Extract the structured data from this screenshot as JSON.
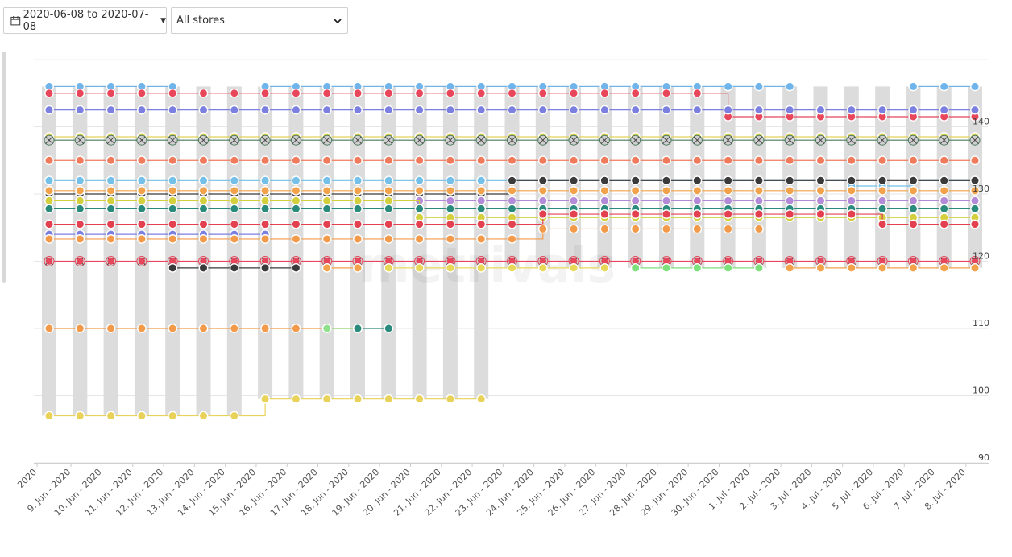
{
  "toolbar": {
    "date_range": "2020-06-08 to 2020-07-08",
    "store_filter": "All stores"
  },
  "watermark": "metrivals",
  "chart_data": {
    "type": "line",
    "title": "",
    "xlabel": "",
    "ylabel": "",
    "ylim": [
      90,
      150
    ],
    "y_ticks": [
      90,
      100,
      110,
      120,
      130,
      140
    ],
    "grid": true,
    "x_tick_labels": [
      "2020",
      "9. Jun - 2020",
      "10. Jun - 2020",
      "11. Jun - 2020",
      "12. Jun - 2020",
      "13. Jun - 2020",
      "14. Jun - 2020",
      "15. Jun - 2020",
      "16. Jun - 2020",
      "17. Jun - 2020",
      "18. Jun - 2020",
      "19. Jun - 2020",
      "20. Jun - 2020",
      "21. Jun - 2020",
      "22. Jun - 2020",
      "23. Jun - 2020",
      "24. Jun - 2020",
      "25. Jun - 2020",
      "26. Jun - 2020",
      "27. Jun - 2020",
      "28. Jun - 2020",
      "29. Jun - 2020",
      "30. Jun - 2020",
      "1. Jul - 2020",
      "2. Jul - 2020",
      "3. Jul - 2020",
      "4. Jul - 2020",
      "5. Jul - 2020",
      "6. Jul - 2020",
      "7. Jul - 2020",
      "8. Jul - 2020"
    ],
    "range_bars": [
      [
        97,
        146
      ],
      [
        97,
        146
      ],
      [
        97,
        146
      ],
      [
        97,
        146
      ],
      [
        97,
        146
      ],
      [
        97,
        146
      ],
      [
        97,
        146
      ],
      [
        99.5,
        146
      ],
      [
        99.5,
        146
      ],
      [
        99.5,
        146
      ],
      [
        99.5,
        146
      ],
      [
        99.5,
        146
      ],
      [
        99.5,
        146
      ],
      [
        99.5,
        146
      ],
      [
        99.5,
        146
      ],
      [
        119,
        146
      ],
      [
        119,
        146
      ],
      [
        119,
        146
      ],
      [
        119,
        146
      ],
      [
        119,
        146
      ],
      [
        119,
        146
      ],
      [
        119,
        146
      ],
      [
        119,
        146
      ],
      [
        119,
        146
      ],
      [
        119,
        146
      ],
      [
        119,
        146
      ],
      [
        119,
        146
      ],
      [
        119,
        146
      ],
      [
        119,
        146
      ],
      [
        119,
        146
      ],
      [
        119,
        146
      ]
    ],
    "series": [
      {
        "color": "#6fb4ea",
        "values": [
          146,
          146,
          146,
          146,
          146,
          null,
          null,
          146,
          146,
          146,
          146,
          146,
          146,
          146,
          146,
          146,
          146,
          146,
          146,
          146,
          146,
          146,
          146,
          146,
          146,
          null,
          null,
          null,
          146,
          146,
          146
        ]
      },
      {
        "color": "#e8465a",
        "values": [
          145,
          145,
          145,
          145,
          145,
          145,
          145,
          145,
          145,
          145,
          145,
          145,
          145,
          145,
          145,
          145,
          145,
          145,
          145,
          145,
          145,
          145,
          141.5,
          141.5,
          141.5,
          141.5,
          141.5,
          141.5,
          141.5,
          141.5,
          141.5
        ]
      },
      {
        "color": "#7b7fe0",
        "values": [
          142.5,
          142.5,
          142.5,
          142.5,
          142.5,
          142.5,
          142.5,
          142.5,
          142.5,
          142.5,
          142.5,
          142.5,
          142.5,
          142.5,
          142.5,
          142.5,
          142.5,
          142.5,
          142.5,
          142.5,
          142.5,
          142.5,
          142.5,
          142.5,
          142.5,
          142.5,
          142.5,
          142.5,
          142.5,
          142.5,
          142.5
        ]
      },
      {
        "color": "#e0d255",
        "values": [
          138.5,
          138.5,
          138.5,
          138.5,
          138.5,
          138.5,
          138.5,
          138.5,
          138.5,
          138.5,
          138.5,
          138.5,
          138.5,
          138.5,
          138.5,
          138.5,
          138.5,
          138.5,
          138.5,
          138.5,
          138.5,
          138.5,
          138.5,
          138.5,
          138.5,
          138.5,
          138.5,
          138.5,
          138.5,
          138.5,
          138.5
        ]
      },
      {
        "color": "#4a7a5c",
        "marker": "crossed",
        "values": [
          138,
          138,
          138,
          138,
          138,
          138,
          138,
          138,
          138,
          138,
          138,
          138,
          138,
          138,
          138,
          138,
          138,
          138,
          138,
          138,
          138,
          138,
          138,
          138,
          138,
          138,
          138,
          138,
          138,
          138,
          138
        ]
      },
      {
        "color": "#f07a5c",
        "values": [
          135,
          135,
          135,
          135,
          135,
          135,
          135,
          135,
          135,
          135,
          135,
          135,
          135,
          135,
          135,
          135,
          135,
          135,
          135,
          135,
          135,
          135,
          135,
          135,
          135,
          135,
          135,
          135,
          135,
          135,
          135
        ]
      },
      {
        "color": "#74c0e8",
        "values": [
          132,
          132,
          132,
          132,
          132,
          132,
          132,
          132,
          132,
          132,
          132,
          132,
          132,
          132,
          132,
          132,
          132,
          132,
          132,
          132,
          132,
          132,
          132,
          132,
          132,
          132,
          131.2,
          131.2,
          132,
          132,
          132
        ]
      },
      {
        "color": "#3a3a3a",
        "values": [
          130,
          130,
          130,
          130,
          130,
          130,
          130,
          130,
          130,
          130,
          130,
          130,
          130,
          130,
          130,
          132,
          132,
          132,
          132,
          132,
          132,
          132,
          132,
          132,
          132,
          132,
          132,
          132,
          132,
          132,
          132
        ]
      },
      {
        "color": "#f2a24a",
        "values": [
          130.5,
          130.5,
          130.5,
          130.5,
          130.5,
          130.5,
          130.5,
          130.5,
          130.5,
          130.5,
          130.5,
          130.5,
          130.5,
          130.5,
          130.5,
          130.5,
          130.5,
          130.5,
          130.5,
          130.5,
          130.5,
          130.5,
          130.5,
          130.5,
          130.5,
          130.5,
          130.5,
          130.5,
          130.5,
          130.5,
          130.5
        ]
      },
      {
        "color": "#b28ad8",
        "values": [
          null,
          null,
          null,
          null,
          null,
          null,
          null,
          null,
          129,
          129,
          129,
          129,
          129,
          129,
          129,
          129,
          129,
          129,
          129,
          129,
          129,
          129,
          129,
          129,
          129,
          129,
          129,
          129,
          129,
          129,
          129
        ]
      },
      {
        "color": "#d4cf3e",
        "values": [
          129,
          129,
          129,
          129,
          129,
          129,
          129,
          129,
          129,
          129,
          129,
          129,
          126.5,
          126.5,
          126.5,
          126.5,
          126.5,
          126.5,
          126.5,
          126.5,
          126.5,
          126.5,
          126.5,
          126.5,
          126.5,
          126.5,
          126.5,
          126.5,
          126.5,
          126.5,
          126.5
        ]
      },
      {
        "color": "#2a8a7c",
        "values": [
          127.8,
          127.8,
          127.8,
          127.8,
          127.8,
          127.8,
          127.8,
          127.8,
          127.8,
          127.8,
          127.8,
          127.8,
          127.8,
          127.8,
          127.8,
          127.8,
          127.8,
          127.8,
          127.8,
          127.8,
          127.8,
          127.8,
          127.8,
          127.8,
          127.8,
          127.8,
          127.8,
          127.8,
          127.8,
          127.8,
          127.8
        ]
      },
      {
        "color": "#e34050",
        "values": [
          125.5,
          125.5,
          125.5,
          125.5,
          125.5,
          125.5,
          125.5,
          125.5,
          125.5,
          125.5,
          125.5,
          125.5,
          125.5,
          125.5,
          125.5,
          125.5,
          127,
          127,
          127,
          127,
          127,
          127,
          127,
          127,
          127,
          127,
          127,
          125.5,
          125.5,
          125.5,
          125.5
        ]
      },
      {
        "color": "#7b7fe0",
        "values": [
          124,
          124,
          124,
          124,
          124,
          124,
          124,
          124,
          null,
          null,
          null,
          null,
          null,
          null,
          null,
          null,
          null,
          null,
          null,
          null,
          null,
          null,
          null,
          null,
          null,
          null,
          null,
          null,
          null,
          null,
          null
        ]
      },
      {
        "color": "#f29a4a",
        "values": [
          123.3,
          123.3,
          123.3,
          123.3,
          123.3,
          123.3,
          123.3,
          123.3,
          123.3,
          123.3,
          123.3,
          123.3,
          123.3,
          123.3,
          123.3,
          123.3,
          124.8,
          124.8,
          124.8,
          124.8,
          124.8,
          124.8,
          124.8,
          124.8,
          null,
          null,
          null,
          null,
          null,
          null,
          null
        ]
      },
      {
        "color": "#e8465a",
        "marker": "crossed",
        "values": [
          120,
          120,
          120,
          120,
          120,
          120,
          120,
          120,
          120,
          120,
          120,
          120,
          120,
          120,
          120,
          120,
          120,
          120,
          120,
          120,
          120,
          120,
          120,
          120,
          120,
          120,
          120,
          120,
          120,
          120,
          120
        ]
      },
      {
        "color": "#3a3a3a",
        "values": [
          null,
          null,
          null,
          null,
          119,
          119,
          119,
          119,
          119,
          null,
          null,
          null,
          null,
          null,
          null,
          null,
          null,
          null,
          null,
          null,
          null,
          null,
          null,
          null,
          null,
          null,
          null,
          null,
          null,
          null,
          null
        ]
      },
      {
        "color": "#f2a24a",
        "values": [
          null,
          null,
          null,
          null,
          null,
          null,
          null,
          null,
          null,
          119,
          119,
          null,
          null,
          null,
          null,
          null,
          null,
          null,
          null,
          null,
          null,
          null,
          null,
          null,
          119,
          119,
          119,
          119,
          119,
          119,
          119
        ]
      },
      {
        "color": "#e8d85a",
        "values": [
          null,
          null,
          null,
          null,
          null,
          null,
          null,
          null,
          null,
          null,
          null,
          119,
          119,
          119,
          119,
          119,
          119,
          119,
          119,
          null,
          null,
          null,
          null,
          null,
          null,
          null,
          null,
          null,
          null,
          null,
          null
        ]
      },
      {
        "color": "#7ee07a",
        "values": [
          null,
          null,
          null,
          null,
          null,
          null,
          null,
          null,
          null,
          null,
          null,
          null,
          null,
          null,
          null,
          null,
          null,
          null,
          null,
          119,
          119,
          119,
          119,
          119,
          null,
          null,
          null,
          null,
          null,
          null,
          null
        ]
      },
      {
        "color": "#f29a4a",
        "values": [
          110,
          110,
          110,
          110,
          110,
          110,
          110,
          110,
          110,
          110,
          110,
          null,
          null,
          null,
          null,
          null,
          null,
          null,
          null,
          null,
          null,
          null,
          null,
          null,
          null,
          null,
          null,
          null,
          null,
          null,
          null
        ]
      },
      {
        "color": "#8fe08a",
        "values": [
          null,
          null,
          null,
          null,
          null,
          null,
          null,
          null,
          null,
          110,
          110,
          null,
          null,
          null,
          null,
          null,
          null,
          null,
          null,
          null,
          null,
          null,
          null,
          null,
          null,
          null,
          null,
          null,
          null,
          null,
          null
        ]
      },
      {
        "color": "#2a8a7c",
        "values": [
          null,
          null,
          null,
          null,
          null,
          null,
          null,
          null,
          null,
          null,
          110,
          110,
          null,
          null,
          null,
          null,
          null,
          null,
          null,
          null,
          null,
          null,
          null,
          null,
          null,
          null,
          null,
          null,
          null,
          null,
          null
        ]
      },
      {
        "color": "#e8d25a",
        "values": [
          97,
          97,
          97,
          97,
          97,
          97,
          97,
          99.5,
          99.5,
          99.5,
          99.5,
          99.5,
          99.5,
          99.5,
          99.5,
          null,
          null,
          null,
          null,
          null,
          null,
          null,
          null,
          null,
          null,
          null,
          null,
          null,
          null,
          null,
          null
        ]
      }
    ]
  }
}
